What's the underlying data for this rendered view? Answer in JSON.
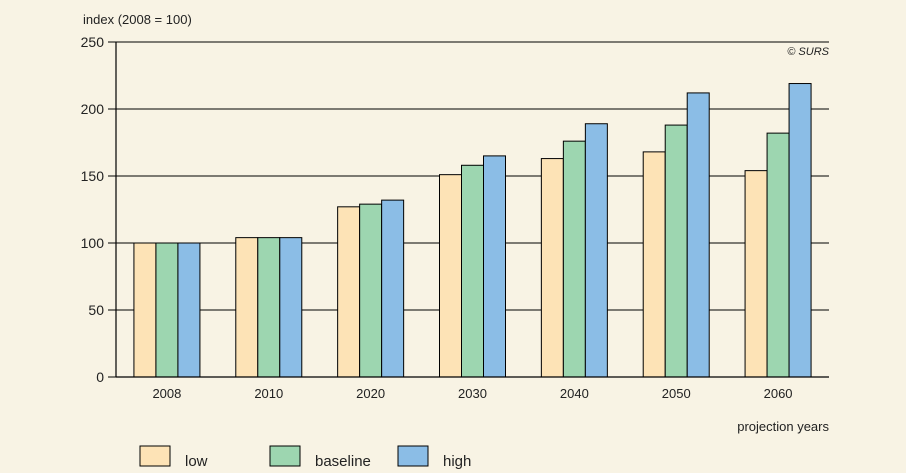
{
  "chart_data": {
    "type": "bar",
    "ylabel": "index (2008 = 100)",
    "xlabel": "projection years",
    "credit": "© SURS",
    "ylim": [
      0,
      250
    ],
    "yticks": [
      0,
      50,
      100,
      150,
      200,
      250
    ],
    "grid": true,
    "legend_position": "bottom-left",
    "categories": [
      "2008",
      "2010",
      "2020",
      "2030",
      "2040",
      "2050",
      "2060"
    ],
    "series": [
      {
        "name": "low",
        "color": "#fde3b6",
        "values": [
          100,
          104,
          127,
          151,
          163,
          168,
          154
        ]
      },
      {
        "name": "baseline",
        "color": "#9dd6b0",
        "values": [
          100,
          104,
          129,
          158,
          176,
          188,
          182
        ]
      },
      {
        "name": "high",
        "color": "#8bbde6",
        "values": [
          100,
          104,
          132,
          165,
          189,
          212,
          219
        ]
      }
    ]
  },
  "colors": {
    "background": "#f8f3e4",
    "gridline": "#000000",
    "bar_outline": "#000000"
  }
}
